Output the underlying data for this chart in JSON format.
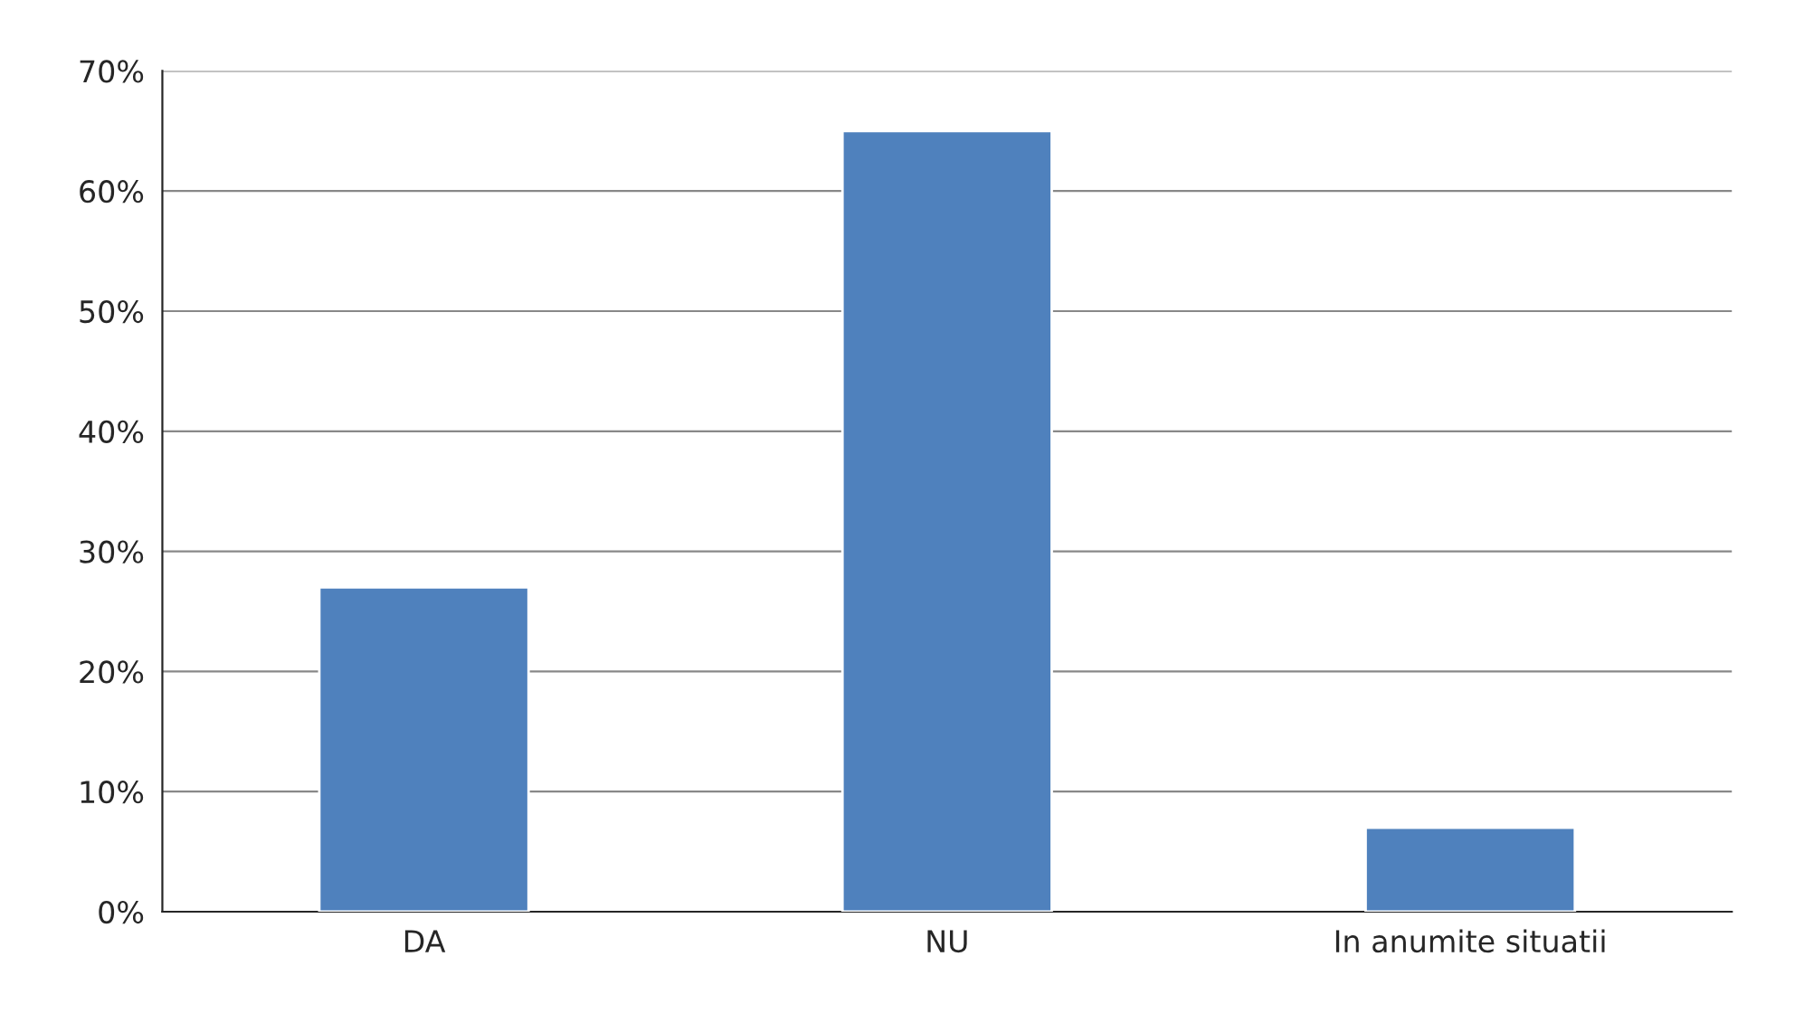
{
  "chart_data": {
    "type": "bar",
    "categories": [
      "DA",
      "NU",
      "In anumite situatii"
    ],
    "values": [
      27,
      65,
      7
    ],
    "color": "#4f81bd",
    "ylim": [
      0,
      70
    ],
    "yticks": [
      {
        "value": 0,
        "label": "0%"
      },
      {
        "value": 10,
        "label": "10%"
      },
      {
        "value": 20,
        "label": "20%"
      },
      {
        "value": 30,
        "label": "30%"
      },
      {
        "value": 40,
        "label": "40%"
      },
      {
        "value": 50,
        "label": "50%"
      },
      {
        "value": 60,
        "label": "60%"
      },
      {
        "value": 70,
        "label": "70%"
      }
    ],
    "grid": "y",
    "legend": false
  }
}
